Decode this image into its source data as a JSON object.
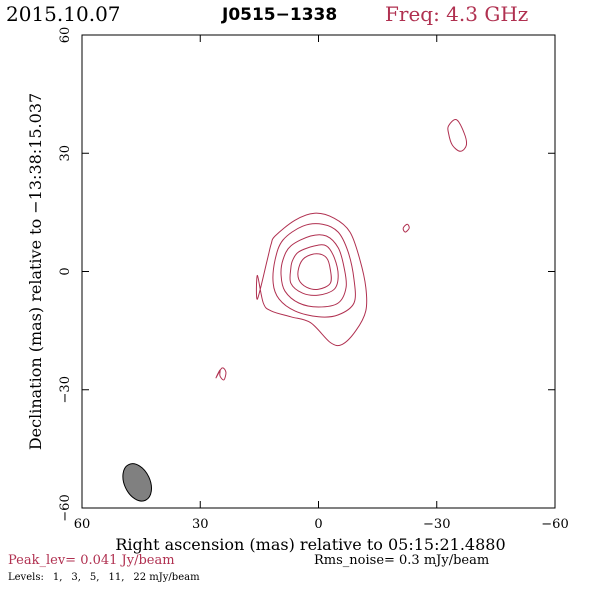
{
  "header": {
    "date": "2015.10.07",
    "source": "J0515−1338",
    "freq": "Freq: 4.3 GHz"
  },
  "colors": {
    "contour": "#b03050",
    "beam": "#808080"
  },
  "chart_data": {
    "type": "contour",
    "xlabel": "Right ascension (mas) relative to 05:15:21.4880",
    "ylabel": "Declination (mas) relative to −13:38:15.037",
    "xlim": [
      60,
      -60
    ],
    "ylim": [
      -60,
      60
    ],
    "x_ticks": [
      "60",
      "30",
      "0",
      "−30",
      "−60"
    ],
    "y_ticks": [
      "−60",
      "−30",
      "0",
      "30",
      "60"
    ],
    "peak_text": "Peak_lev=  0.041 Jy/beam",
    "rms_text": "Rms_noise=   0.3 mJy/beam",
    "levels_label": "Levels:",
    "levels": [
      "1,",
      "3,",
      "5,",
      "11,",
      "22 mJy/beam"
    ],
    "contours": [
      {
        "level": 1,
        "points": [
          [
            11,
            9
          ],
          [
            6,
            13
          ],
          [
            1,
            14.8
          ],
          [
            -4,
            13.5
          ],
          [
            -8,
            10
          ],
          [
            -10.5,
            3
          ],
          [
            -12,
            -4
          ],
          [
            -12,
            -10
          ],
          [
            -9.5,
            -15
          ],
          [
            -6,
            -18.5
          ],
          [
            -3,
            -18
          ],
          [
            2,
            -13
          ],
          [
            7,
            -11.5
          ],
          [
            12,
            -10
          ],
          [
            14,
            -8
          ],
          [
            15.5,
            -1
          ],
          [
            15.5,
            -7
          ],
          [
            13,
            3
          ],
          [
            12,
            7
          ]
        ]
      },
      {
        "level": 3,
        "points": [
          [
            9,
            8
          ],
          [
            4,
            11.5
          ],
          [
            -1,
            12
          ],
          [
            -5,
            10
          ],
          [
            -7.5,
            5
          ],
          [
            -9,
            -2
          ],
          [
            -9,
            -8
          ],
          [
            -5,
            -11
          ],
          [
            0,
            -11.5
          ],
          [
            6,
            -10
          ],
          [
            10,
            -7
          ],
          [
            11.5,
            -3
          ],
          [
            11,
            3
          ]
        ]
      },
      {
        "level": 5,
        "points": [
          [
            7,
            6.5
          ],
          [
            2,
            9
          ],
          [
            -2,
            9
          ],
          [
            -5,
            6
          ],
          [
            -6.5,
            1
          ],
          [
            -7,
            -4
          ],
          [
            -5,
            -8
          ],
          [
            0,
            -9
          ],
          [
            5,
            -8
          ],
          [
            8.5,
            -5
          ],
          [
            9.5,
            -1
          ],
          [
            9,
            3
          ]
        ]
      },
      {
        "level": 11,
        "points": [
          [
            5,
            5
          ],
          [
            1,
            6.5
          ],
          [
            -2,
            6.5
          ],
          [
            -4,
            3.5
          ],
          [
            -5,
            -1
          ],
          [
            -4,
            -4.5
          ],
          [
            0,
            -6
          ],
          [
            4,
            -5.5
          ],
          [
            7,
            -3
          ],
          [
            7,
            1
          ],
          [
            6.5,
            3
          ]
        ]
      },
      {
        "level": 22,
        "points": [
          [
            3.5,
            3.5
          ],
          [
            0.5,
            4.5
          ],
          [
            -2,
            3.5
          ],
          [
            -3,
            0.5
          ],
          [
            -3,
            -3
          ],
          [
            0,
            -4.5
          ],
          [
            3,
            -4
          ],
          [
            5,
            -2
          ],
          [
            5,
            1
          ]
        ]
      },
      {
        "level": 1,
        "points": [
          [
            26,
            -27
          ],
          [
            25,
            -25
          ],
          [
            25,
            -26.5
          ],
          [
            24,
            -27.5
          ],
          [
            23.5,
            -25.5
          ],
          [
            24.5,
            -24.5
          ]
        ]
      },
      {
        "level": 1,
        "points": [
          [
            -21.5,
            11
          ],
          [
            -22.5,
            12
          ],
          [
            -23,
            11
          ],
          [
            -22,
            10
          ]
        ]
      },
      {
        "level": 1,
        "points": [
          [
            -33,
            37
          ],
          [
            -35,
            38.5
          ],
          [
            -37,
            35
          ],
          [
            -37.5,
            32
          ],
          [
            -36,
            30.5
          ],
          [
            -34,
            32
          ],
          [
            -33,
            35
          ]
        ]
      }
    ],
    "beam": {
      "x": 46,
      "y": -53.5,
      "major_mas": 10,
      "minor_mas": 6.5,
      "pa_deg": -25
    }
  }
}
